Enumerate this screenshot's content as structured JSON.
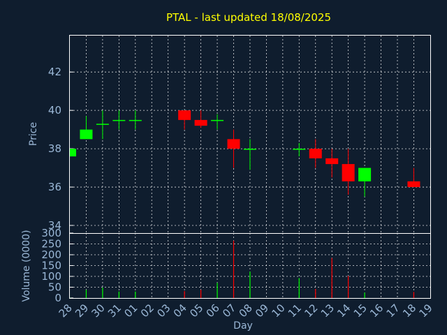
{
  "chart_data": [
    {
      "type": "candlestick",
      "title": "PTAL - last updated 18/08/2025",
      "ylabel": "Price",
      "ylim": [
        33.6,
        43.9
      ],
      "yticks": [
        34,
        36,
        38,
        40,
        42
      ],
      "grid": true,
      "colors": {
        "up": "#00ff00",
        "down": "#ff0000"
      },
      "candles": [
        {
          "day": "28",
          "open": 37.6,
          "high": 38.0,
          "low": 37.6,
          "close": 38.0
        },
        {
          "day": "29",
          "open": 38.5,
          "high": 39.7,
          "low": 38.5,
          "close": 39.0
        },
        {
          "day": "30",
          "open": 39.3,
          "high": 40.0,
          "low": 38.5,
          "close": 39.3
        },
        {
          "day": "31",
          "open": 39.5,
          "high": 40.0,
          "low": 39.0,
          "close": 39.5
        },
        {
          "day": "01",
          "open": 39.5,
          "high": 40.0,
          "low": 39.0,
          "close": 39.5
        },
        {
          "day": "04",
          "open": 40.0,
          "high": 40.0,
          "low": 39.0,
          "close": 39.5
        },
        {
          "day": "05",
          "open": 39.5,
          "high": 40.0,
          "low": 39.1,
          "close": 39.2
        },
        {
          "day": "06",
          "open": 39.5,
          "high": 39.8,
          "low": 39.0,
          "close": 39.5
        },
        {
          "day": "07",
          "open": 38.5,
          "high": 39.0,
          "low": 37.0,
          "close": 38.0
        },
        {
          "day": "08",
          "open": 38.0,
          "high": 38.5,
          "low": 36.9,
          "close": 38.0
        },
        {
          "day": "11",
          "open": 38.0,
          "high": 38.3,
          "low": 37.6,
          "close": 38.0
        },
        {
          "day": "12",
          "open": 38.0,
          "high": 38.5,
          "low": 37.0,
          "close": 37.5
        },
        {
          "day": "13",
          "open": 37.5,
          "high": 38.0,
          "low": 36.5,
          "close": 37.2
        },
        {
          "day": "14",
          "open": 37.2,
          "high": 38.0,
          "low": 35.6,
          "close": 36.3
        },
        {
          "day": "15",
          "open": 36.3,
          "high": 37.0,
          "low": 35.5,
          "close": 37.0
        },
        {
          "day": "18",
          "open": 36.3,
          "high": 37.0,
          "low": 36.0,
          "close": 36.0
        }
      ]
    },
    {
      "type": "bar",
      "ylabel": "Volume (0000)",
      "xlabel": "Day",
      "ylim": [
        0,
        300
      ],
      "yticks": [
        0,
        50,
        100,
        150,
        200,
        250,
        300
      ],
      "grid": true,
      "categories": [
        "28",
        "29",
        "30",
        "31",
        "01",
        "02",
        "03",
        "04",
        "05",
        "06",
        "07",
        "08",
        "09",
        "10",
        "11",
        "12",
        "13",
        "14",
        "15",
        "16",
        "17",
        "18",
        "19"
      ],
      "values": [
        2,
        38,
        48,
        30,
        30,
        0,
        0,
        32,
        38,
        70,
        265,
        122,
        0,
        0,
        92,
        42,
        185,
        102,
        25,
        0,
        0,
        28,
        0
      ],
      "colors": [
        "#00ff00",
        "#00ff00",
        "#00ff00",
        "#00ff00",
        "#00ff00",
        "#00ff00",
        "#00ff00",
        "#ff0000",
        "#ff0000",
        "#00ff00",
        "#ff0000",
        "#00ff00",
        "#00ff00",
        "#00ff00",
        "#00ff00",
        "#ff0000",
        "#ff0000",
        "#ff0000",
        "#00ff00",
        "#00ff00",
        "#00ff00",
        "#ff0000",
        "#00ff00"
      ]
    }
  ]
}
